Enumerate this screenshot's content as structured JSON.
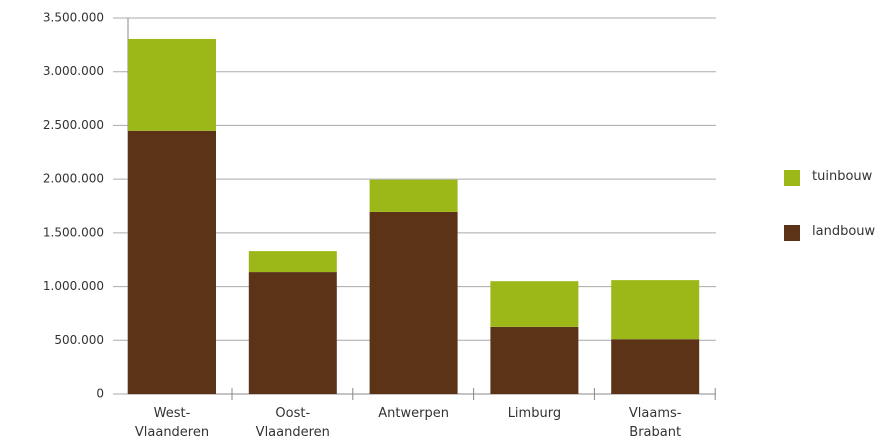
{
  "chart_data": {
    "type": "stacked-bar",
    "categories": [
      "West-Vlaanderen",
      "Oost-Vlaanderen",
      "Antwerpen",
      "Limburg",
      "Vlaams-Brabant"
    ],
    "series": [
      {
        "name": "landbouw",
        "color": "#5c3317",
        "values": [
          2450000,
          1135000,
          1695000,
          625000,
          510000
        ]
      },
      {
        "name": "tuinbouw",
        "color": "#9bb818",
        "values": [
          855000,
          195000,
          300000,
          425000,
          550000
        ]
      }
    ],
    "ylim": [
      0,
      3500000
    ],
    "yticks": [
      0,
      {
        "value": 500000,
        "label": "500.000"
      },
      {
        "value": 1000000,
        "label": "1.000.000"
      },
      {
        "value": 1500000,
        "label": "1.500.000"
      },
      {
        "value": 2000000,
        "label": "2.000.000"
      },
      {
        "value": 2500000,
        "label": "2.500.000"
      },
      {
        "value": 3000000,
        "label": "3.000.000"
      },
      {
        "value": 3500000,
        "label": "3.500.000"
      }
    ],
    "grid": true,
    "legend": "right"
  }
}
